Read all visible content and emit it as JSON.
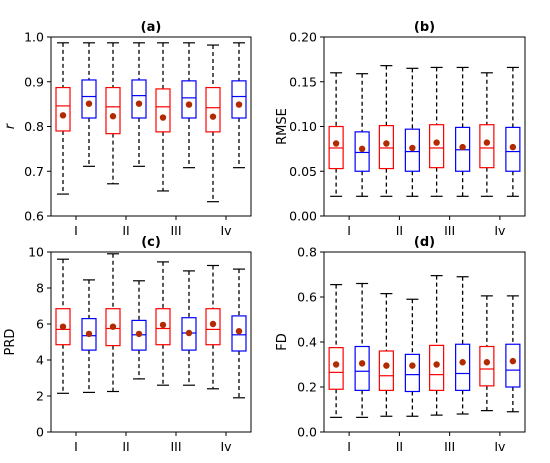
{
  "chart_data": [
    {
      "type": "box",
      "title": "(a)",
      "ylabel": "r",
      "ylabel_italic": true,
      "categories": [
        "I",
        "II",
        "III",
        "Iv"
      ],
      "ylim": [
        0.6,
        1.0
      ],
      "yticks": [
        0.6,
        0.7,
        0.8,
        0.9,
        1.0
      ],
      "ytick_labels": [
        "0.6",
        "0.7",
        "0.8",
        "0.9",
        "1.0"
      ],
      "series": [
        {
          "color": "#ff0000",
          "boxes": [
            {
              "min": 0.649,
              "q1": 0.79,
              "median": 0.846,
              "q3": 0.887,
              "max": 0.987,
              "mean": 0.825
            },
            {
              "min": 0.672,
              "q1": 0.784,
              "median": 0.844,
              "q3": 0.887,
              "max": 0.987,
              "mean": 0.823
            },
            {
              "min": 0.656,
              "q1": 0.788,
              "median": 0.844,
              "q3": 0.884,
              "max": 0.987,
              "mean": 0.82
            },
            {
              "min": 0.632,
              "q1": 0.788,
              "median": 0.842,
              "q3": 0.887,
              "max": 0.982,
              "mean": 0.822
            }
          ]
        },
        {
          "color": "#0000ff",
          "boxes": [
            {
              "min": 0.711,
              "q1": 0.819,
              "median": 0.867,
              "q3": 0.904,
              "max": 0.987,
              "mean": 0.851
            },
            {
              "min": 0.711,
              "q1": 0.819,
              "median": 0.869,
              "q3": 0.904,
              "max": 0.987,
              "mean": 0.851
            },
            {
              "min": 0.708,
              "q1": 0.819,
              "median": 0.864,
              "q3": 0.902,
              "max": 0.987,
              "mean": 0.849
            },
            {
              "min": 0.708,
              "q1": 0.819,
              "median": 0.867,
              "q3": 0.902,
              "max": 0.987,
              "mean": 0.849
            }
          ]
        }
      ]
    },
    {
      "type": "box",
      "title": "(b)",
      "ylabel": "RMSE",
      "ylabel_italic": false,
      "categories": [
        "I",
        "II",
        "III",
        "Iv"
      ],
      "ylim": [
        0.0,
        0.2
      ],
      "yticks": [
        0.0,
        0.05,
        0.1,
        0.15,
        0.2
      ],
      "ytick_labels": [
        "0.00",
        "0.05",
        "0.10",
        "0.15",
        "0.20"
      ],
      "series": [
        {
          "color": "#ff0000",
          "boxes": [
            {
              "min": 0.022,
              "q1": 0.053,
              "median": 0.076,
              "q3": 0.1,
              "max": 0.16,
              "mean": 0.081
            },
            {
              "min": 0.022,
              "q1": 0.053,
              "median": 0.076,
              "q3": 0.101,
              "max": 0.168,
              "mean": 0.081
            },
            {
              "min": 0.022,
              "q1": 0.054,
              "median": 0.076,
              "q3": 0.102,
              "max": 0.166,
              "mean": 0.082
            },
            {
              "min": 0.022,
              "q1": 0.054,
              "median": 0.076,
              "q3": 0.102,
              "max": 0.16,
              "mean": 0.082
            }
          ]
        },
        {
          "color": "#0000ff",
          "boxes": [
            {
              "min": 0.022,
              "q1": 0.05,
              "median": 0.071,
              "q3": 0.094,
              "max": 0.159,
              "mean": 0.075
            },
            {
              "min": 0.022,
              "q1": 0.05,
              "median": 0.072,
              "q3": 0.097,
              "max": 0.165,
              "mean": 0.076
            },
            {
              "min": 0.022,
              "q1": 0.05,
              "median": 0.074,
              "q3": 0.099,
              "max": 0.166,
              "mean": 0.077
            },
            {
              "min": 0.022,
              "q1": 0.05,
              "median": 0.072,
              "q3": 0.099,
              "max": 0.166,
              "mean": 0.077
            }
          ]
        }
      ]
    },
    {
      "type": "box",
      "title": "(c)",
      "ylabel": "PRD",
      "ylabel_italic": false,
      "categories": [
        "I",
        "II",
        "III",
        "Iv"
      ],
      "ylim": [
        0,
        10
      ],
      "yticks": [
        0,
        2,
        4,
        6,
        8,
        10
      ],
      "ytick_labels": [
        "0",
        "2",
        "4",
        "6",
        "8",
        "10"
      ],
      "series": [
        {
          "color": "#ff0000",
          "boxes": [
            {
              "min": 2.15,
              "q1": 4.85,
              "median": 5.7,
              "q3": 6.85,
              "max": 9.6,
              "mean": 5.85
            },
            {
              "min": 2.25,
              "q1": 4.8,
              "median": 5.75,
              "q3": 6.85,
              "max": 9.9,
              "mean": 5.85
            },
            {
              "min": 2.6,
              "q1": 4.85,
              "median": 5.75,
              "q3": 6.85,
              "max": 9.45,
              "mean": 5.95
            },
            {
              "min": 2.4,
              "q1": 4.85,
              "median": 5.7,
              "q3": 6.85,
              "max": 9.25,
              "mean": 6.0
            }
          ]
        },
        {
          "color": "#0000ff",
          "boxes": [
            {
              "min": 2.2,
              "q1": 4.55,
              "median": 5.35,
              "q3": 6.3,
              "max": 8.45,
              "mean": 5.45
            },
            {
              "min": 2.95,
              "q1": 4.55,
              "median": 5.4,
              "q3": 6.2,
              "max": 8.4,
              "mean": 5.45
            },
            {
              "min": 2.6,
              "q1": 4.55,
              "median": 5.5,
              "q3": 6.35,
              "max": 8.95,
              "mean": 5.5
            },
            {
              "min": 1.9,
              "q1": 4.5,
              "median": 5.4,
              "q3": 6.45,
              "max": 9.05,
              "mean": 5.6
            }
          ]
        }
      ]
    },
    {
      "type": "box",
      "title": "(d)",
      "ylabel": "FD",
      "ylabel_italic": false,
      "categories": [
        "I",
        "II",
        "III",
        "Iv"
      ],
      "ylim": [
        0.0,
        0.8
      ],
      "yticks": [
        0.0,
        0.2,
        0.4,
        0.6,
        0.8
      ],
      "ytick_labels": [
        "0.0",
        "0.2",
        "0.4",
        "0.6",
        "0.8"
      ],
      "series": [
        {
          "color": "#ff0000",
          "boxes": [
            {
              "min": 0.065,
              "q1": 0.19,
              "median": 0.265,
              "q3": 0.375,
              "max": 0.655,
              "mean": 0.3
            },
            {
              "min": 0.07,
              "q1": 0.185,
              "median": 0.25,
              "q3": 0.36,
              "max": 0.615,
              "mean": 0.295
            },
            {
              "min": 0.075,
              "q1": 0.185,
              "median": 0.255,
              "q3": 0.385,
              "max": 0.695,
              "mean": 0.3
            },
            {
              "min": 0.095,
              "q1": 0.205,
              "median": 0.28,
              "q3": 0.38,
              "max": 0.605,
              "mean": 0.31
            }
          ]
        },
        {
          "color": "#0000ff",
          "boxes": [
            {
              "min": 0.065,
              "q1": 0.185,
              "median": 0.27,
              "q3": 0.38,
              "max": 0.66,
              "mean": 0.305
            },
            {
              "min": 0.07,
              "q1": 0.18,
              "median": 0.255,
              "q3": 0.345,
              "max": 0.59,
              "mean": 0.295
            },
            {
              "min": 0.08,
              "q1": 0.185,
              "median": 0.26,
              "q3": 0.39,
              "max": 0.69,
              "mean": 0.31
            },
            {
              "min": 0.09,
              "q1": 0.2,
              "median": 0.275,
              "q3": 0.39,
              "max": 0.605,
              "mean": 0.315
            }
          ]
        }
      ]
    }
  ],
  "mean_marker_color": "#b22a00"
}
